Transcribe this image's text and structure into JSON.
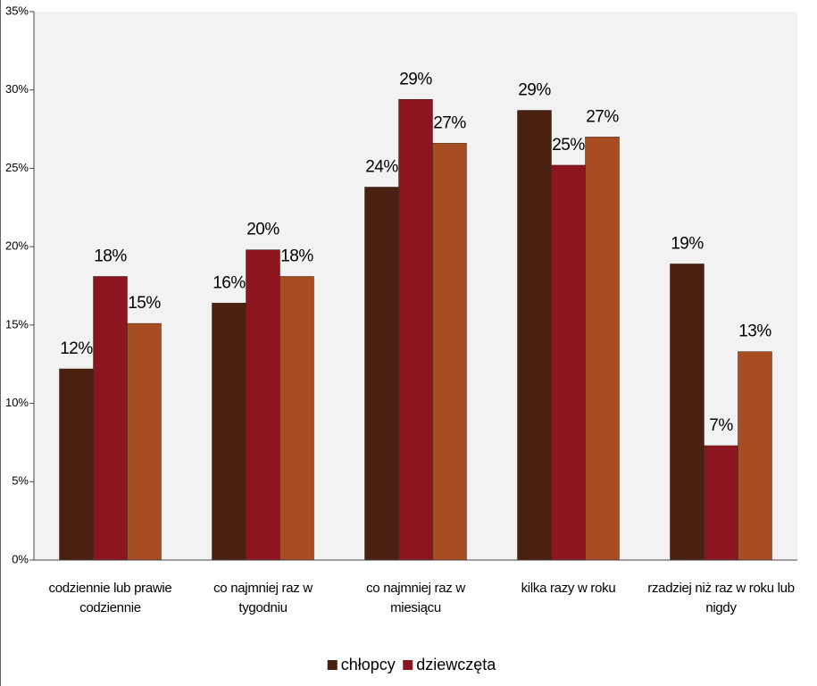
{
  "chart_data": {
    "type": "bar",
    "categories": [
      "codziennie lub prawie codziennie",
      "co najmniej raz w tygodniu",
      "co najmniej raz w miesiącu",
      "kilka razy w roku",
      "rzadziej niż raz w roku lub nigdy"
    ],
    "series": [
      {
        "name": "chłopcy",
        "color": "#4a2010",
        "values": [
          12.2,
          16.4,
          23.8,
          28.7,
          18.9
        ],
        "value_labels": [
          "12%",
          "16%",
          "24%",
          "29%",
          "19%"
        ]
      },
      {
        "name": "dziewczęta",
        "color": "#8c1520",
        "values": [
          18.1,
          19.8,
          29.4,
          25.2,
          7.3
        ],
        "value_labels": [
          "18%",
          "20%",
          "29%",
          "25%",
          "7%"
        ]
      },
      {
        "color": "#a84c22",
        "values": [
          15.1,
          18.1,
          26.6,
          27.0,
          13.3
        ],
        "value_labels": [
          "15%",
          "18%",
          "27%",
          "27%",
          "13%"
        ]
      }
    ],
    "ylim": [
      0,
      35
    ],
    "yticks": [
      {
        "value": 0,
        "label": "0%"
      },
      {
        "value": 5,
        "label": "5%"
      },
      {
        "value": 10,
        "label": "10%"
      },
      {
        "value": 15,
        "label": "15%"
      },
      {
        "value": 20,
        "label": "20%"
      },
      {
        "value": 25,
        "label": "25%"
      },
      {
        "value": 30,
        "label": "30%"
      },
      {
        "value": 35,
        "label": "35%"
      }
    ],
    "legend": "bottom"
  }
}
